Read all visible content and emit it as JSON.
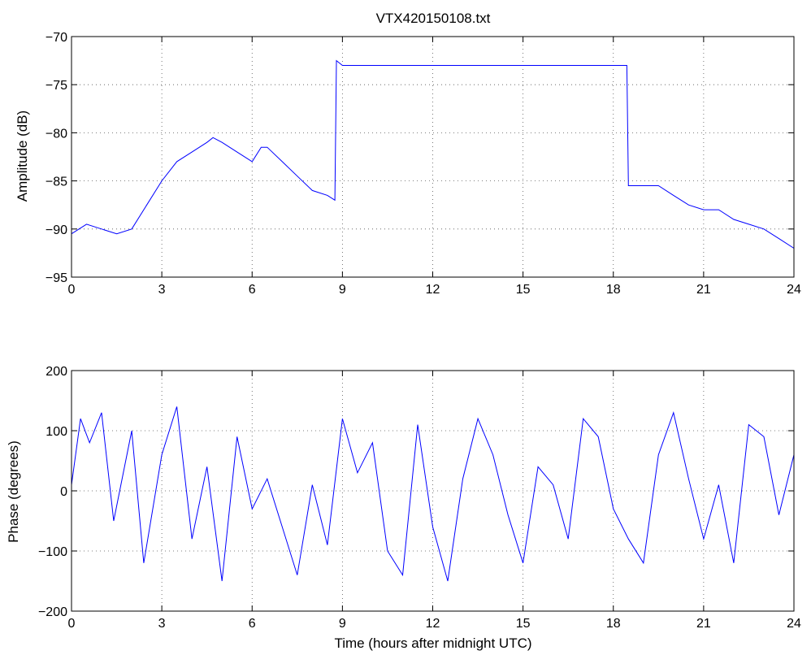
{
  "chart_data": [
    {
      "type": "line",
      "title": "VTX420150108.txt",
      "xlabel": "",
      "ylabel": "Amplitude (dB)",
      "xlim": [
        0,
        24
      ],
      "ylim": [
        -95,
        -70
      ],
      "xticks": [
        0,
        3,
        6,
        9,
        12,
        15,
        18,
        21,
        24
      ],
      "yticks": [
        -95,
        -90,
        -85,
        -80,
        -75,
        -70
      ],
      "xtick_labels": [
        "0",
        "3",
        "6",
        "9",
        "12",
        "15",
        "18",
        "21",
        "24"
      ],
      "ytick_labels": [
        "−95",
        "−90",
        "−85",
        "−80",
        "−75",
        "−70"
      ],
      "grid": true,
      "color": "#0000ff",
      "series": [
        {
          "x": [
            0,
            0.5,
            1,
            1.5,
            2,
            2.5,
            3,
            3.5,
            4,
            4.5,
            4.7,
            5,
            5.5,
            6,
            6.3,
            6.5,
            7,
            7.5,
            8,
            8.5,
            8.75,
            8.8,
            9,
            10,
            11,
            12,
            13,
            14,
            15,
            16,
            17,
            18,
            18.45,
            18.5,
            19,
            19.5,
            20,
            20.5,
            21,
            21.5,
            22,
            22.5,
            23,
            23.5,
            24
          ],
          "y": [
            -90.5,
            -89.5,
            -90,
            -90.5,
            -90,
            -87.5,
            -85,
            -83,
            -82,
            -81,
            -80.5,
            -81,
            -82,
            -83,
            -81.5,
            -81.5,
            -83,
            -84.5,
            -86,
            -86.5,
            -87,
            -72.5,
            -73,
            -73,
            -73,
            -73,
            -73,
            -73,
            -73,
            -73,
            -73,
            -73,
            -73,
            -85.5,
            -85.5,
            -85.5,
            -86.5,
            -87.5,
            -88,
            -88,
            -89,
            -89.5,
            -90,
            -91,
            -92
          ]
        }
      ]
    },
    {
      "type": "line",
      "title": "",
      "xlabel": "Time (hours after midnight UTC)",
      "ylabel": "Phase (degrees)",
      "xlim": [
        0,
        24
      ],
      "ylim": [
        -200,
        200
      ],
      "xticks": [
        0,
        3,
        6,
        9,
        12,
        15,
        18,
        21,
        24
      ],
      "yticks": [
        -200,
        -100,
        0,
        100,
        200
      ],
      "xtick_labels": [
        "0",
        "3",
        "6",
        "9",
        "12",
        "15",
        "18",
        "21",
        "24"
      ],
      "ytick_labels": [
        "−200",
        "−100",
        "0",
        "100",
        "200"
      ],
      "grid": true,
      "color": "#0000ff",
      "series": [
        {
          "x": [
            0,
            0.3,
            0.6,
            1,
            1.4,
            2,
            2.4,
            3,
            3.5,
            4,
            4.5,
            5,
            5.5,
            6,
            6.5,
            7,
            7.5,
            8,
            8.5,
            9,
            9.5,
            10,
            10.5,
            11,
            11.5,
            12,
            12.5,
            13,
            13.5,
            14,
            14.5,
            15,
            15.5,
            16,
            16.5,
            17,
            17.5,
            18,
            18.5,
            19,
            19.5,
            20,
            20.5,
            21,
            21.5,
            22,
            22.5,
            23,
            23.5,
            24
          ],
          "y": [
            10,
            120,
            80,
            130,
            -50,
            100,
            -120,
            60,
            140,
            -80,
            40,
            -150,
            90,
            -30,
            20,
            -60,
            -140,
            10,
            -90,
            120,
            30,
            80,
            -100,
            -140,
            110,
            -60,
            -150,
            20,
            120,
            60,
            -40,
            -120,
            40,
            10,
            -80,
            120,
            90,
            -30,
            -80,
            -120,
            60,
            130,
            20,
            -80,
            10,
            -120,
            110,
            90,
            -40,
            60
          ]
        }
      ]
    }
  ]
}
